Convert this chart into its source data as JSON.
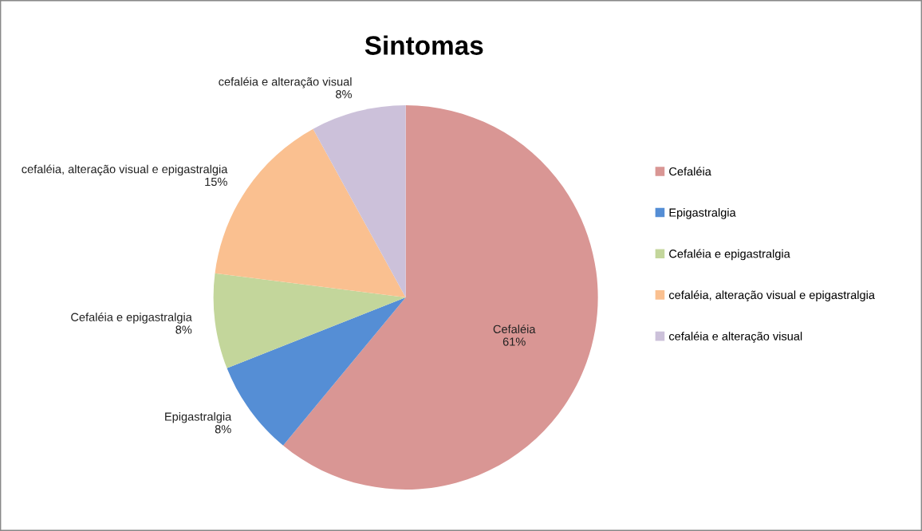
{
  "chart_data": {
    "type": "pie",
    "title": "Sintomas",
    "categories": [
      "Cefaléia",
      "Epigastralgia",
      "Cefaléia e epigastralgia",
      "cefaléia, alteração visual e epigastralgia",
      "cefaléia e alteração visual"
    ],
    "values": [
      61,
      8,
      8,
      15,
      8
    ],
    "value_labels": [
      "61%",
      "8%",
      "8%",
      "15%",
      "8%"
    ],
    "colors": [
      "#d99694",
      "#558ed5",
      "#c3d69b",
      "#fac090",
      "#ccc1da"
    ],
    "legend": "right"
  }
}
